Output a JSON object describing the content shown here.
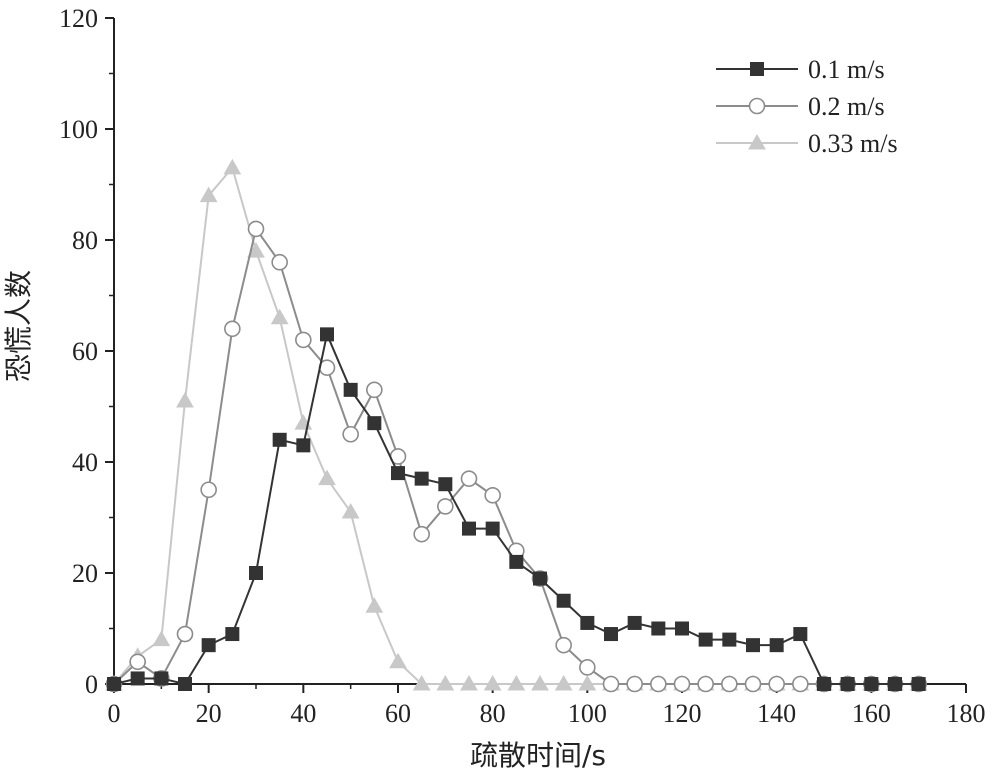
{
  "chart_data": {
    "type": "line",
    "title": "",
    "xlabel": "疏散时间/s",
    "ylabel": "恐慌人数",
    "xlim": [
      0,
      180
    ],
    "ylim": [
      0,
      120
    ],
    "xticks": [
      0,
      20,
      40,
      60,
      80,
      100,
      120,
      140,
      160,
      180
    ],
    "yticks": [
      0,
      20,
      40,
      60,
      80,
      100,
      120
    ],
    "x": [
      0,
      5,
      10,
      15,
      20,
      25,
      30,
      35,
      40,
      45,
      50,
      55,
      60,
      65,
      70,
      75,
      80,
      85,
      90,
      95,
      100,
      105,
      110,
      115,
      120,
      125,
      130,
      135,
      140,
      145,
      150,
      155,
      160,
      165,
      170
    ],
    "legend_position": "top-right",
    "grid": false,
    "series": [
      {
        "name": "0.1 m/s",
        "marker": "square",
        "color": "#333333",
        "values": [
          0,
          1,
          1,
          0,
          7,
          9,
          20,
          44,
          43,
          63,
          53,
          47,
          38,
          37,
          36,
          28,
          28,
          22,
          19,
          15,
          11,
          9,
          11,
          10,
          10,
          8,
          8,
          7,
          7,
          9,
          0,
          0,
          0,
          0,
          0
        ]
      },
      {
        "name": "0.2 m/s",
        "marker": "circle",
        "color": "#8c8c8c",
        "values": [
          0,
          4,
          1,
          9,
          35,
          64,
          82,
          76,
          62,
          57,
          45,
          53,
          41,
          27,
          32,
          37,
          34,
          24,
          19,
          7,
          3,
          0,
          0,
          0,
          0,
          0,
          0,
          0,
          0,
          0,
          0,
          0,
          0,
          0,
          0
        ]
      },
      {
        "name": "0.33 m/s",
        "marker": "triangle",
        "color": "#c8c8c8",
        "values": [
          0,
          5,
          8,
          51,
          88,
          93,
          78,
          66,
          47,
          37,
          31,
          14,
          4,
          0,
          0,
          0,
          0,
          0,
          0,
          0,
          0,
          0,
          0,
          0,
          0,
          0,
          0,
          0,
          0,
          0,
          0,
          0,
          0,
          0,
          0
        ]
      }
    ]
  }
}
